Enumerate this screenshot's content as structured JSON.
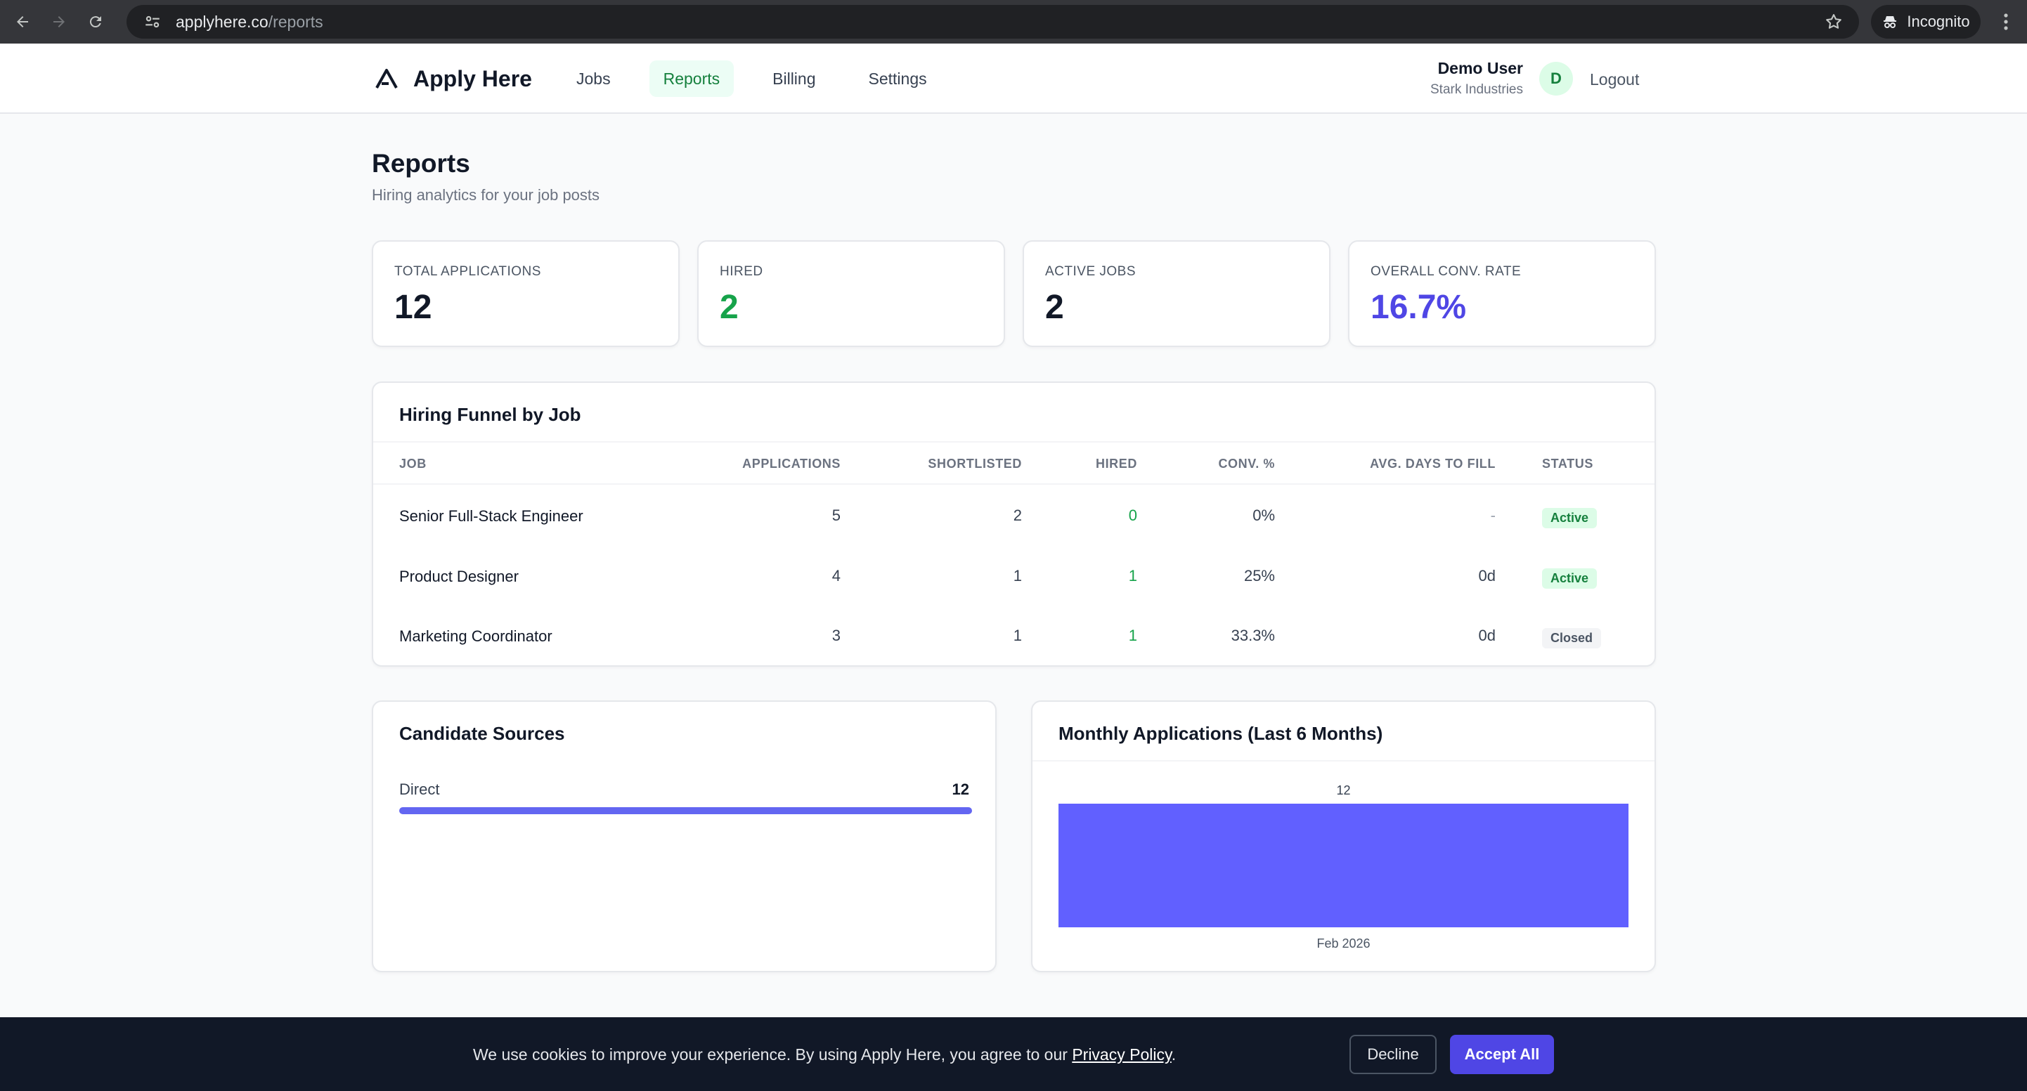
{
  "browser": {
    "url_host": "applyhere.co",
    "url_path": "/reports",
    "incognito_label": "Incognito"
  },
  "header": {
    "brand": "Apply Here",
    "nav": [
      {
        "label": "Jobs"
      },
      {
        "label": "Reports",
        "active": true
      },
      {
        "label": "Billing"
      },
      {
        "label": "Settings"
      }
    ],
    "user_name": "Demo User",
    "user_org": "Stark Industries",
    "avatar_initial": "D",
    "logout_label": "Logout"
  },
  "page": {
    "title": "Reports",
    "subtitle": "Hiring analytics for your job posts"
  },
  "stats": [
    {
      "label": "TOTAL APPLICATIONS",
      "value": "12",
      "color": "#111827"
    },
    {
      "label": "HIRED",
      "value": "2",
      "color": "#16a34a"
    },
    {
      "label": "ACTIVE JOBS",
      "value": "2",
      "color": "#111827"
    },
    {
      "label": "OVERALL CONV. RATE",
      "value": "16.7%",
      "color": "#4f46e5"
    }
  ],
  "funnel": {
    "title": "Hiring Funnel by Job",
    "columns": [
      "JOB",
      "APPLICATIONS",
      "SHORTLISTED",
      "HIRED",
      "CONV. %",
      "AVG. DAYS TO FILL",
      "STATUS"
    ],
    "rows": [
      {
        "job": "Senior Full-Stack Engineer",
        "applications": "5",
        "shortlisted": "2",
        "hired": "0",
        "conv": "0%",
        "avg_days": "-",
        "status": "Active"
      },
      {
        "job": "Product Designer",
        "applications": "4",
        "shortlisted": "1",
        "hired": "1",
        "conv": "25%",
        "avg_days": "0d",
        "status": "Active"
      },
      {
        "job": "Marketing Coordinator",
        "applications": "3",
        "shortlisted": "1",
        "hired": "1",
        "conv": "33.3%",
        "avg_days": "0d",
        "status": "Closed"
      }
    ]
  },
  "sources": {
    "title": "Candidate Sources",
    "items": [
      {
        "label": "Direct",
        "value": "12",
        "fraction": 1.0
      }
    ],
    "bar_color": "#6366f1"
  },
  "monthly": {
    "title": "Monthly Applications (Last 6 Months)"
  },
  "chart_data": {
    "type": "bar",
    "categories": [
      "Feb 2026"
    ],
    "values": [
      12
    ],
    "title": "Monthly Applications (Last 6 Months)",
    "xlabel": "",
    "ylabel": "",
    "ylim": [
      0,
      12
    ],
    "grid": false,
    "bar_color": "#6160ff"
  },
  "cookie": {
    "text_before": "We use cookies to improve your experience. By using Apply Here, you agree to our ",
    "link": "Privacy Policy",
    "text_after": ".",
    "decline": "Decline",
    "accept": "Accept All"
  }
}
